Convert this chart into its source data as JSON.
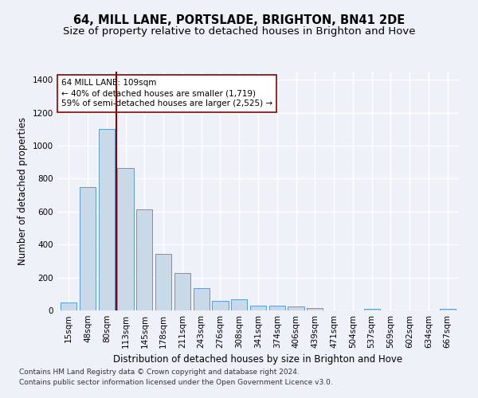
{
  "title1": "64, MILL LANE, PORTSLADE, BRIGHTON, BN41 2DE",
  "title2": "Size of property relative to detached houses in Brighton and Hove",
  "xlabel": "Distribution of detached houses by size in Brighton and Hove",
  "ylabel": "Number of detached properties",
  "footnote1": "Contains HM Land Registry data © Crown copyright and database right 2024.",
  "footnote2": "Contains public sector information licensed under the Open Government Licence v3.0.",
  "annotation_line1": "64 MILL LANE: 109sqm",
  "annotation_line2": "← 40% of detached houses are smaller (1,719)",
  "annotation_line3": "59% of semi-detached houses are larger (2,525) →",
  "bar_color": "#c9d9e8",
  "bar_edge_color": "#5b9bd5",
  "vline_color": "#8b0000",
  "vline_x": 2.5,
  "categories": [
    "15sqm",
    "48sqm",
    "80sqm",
    "113sqm",
    "145sqm",
    "178sqm",
    "211sqm",
    "243sqm",
    "276sqm",
    "308sqm",
    "341sqm",
    "374sqm",
    "406sqm",
    "439sqm",
    "471sqm",
    "504sqm",
    "537sqm",
    "569sqm",
    "602sqm",
    "634sqm",
    "667sqm"
  ],
  "values": [
    50,
    750,
    1100,
    865,
    615,
    345,
    225,
    135,
    60,
    70,
    30,
    30,
    22,
    15,
    0,
    0,
    12,
    0,
    0,
    0,
    12
  ],
  "ylim": [
    0,
    1450
  ],
  "yticks": [
    0,
    200,
    400,
    600,
    800,
    1000,
    1200,
    1400
  ],
  "background_color": "#eef2f8",
  "grid_color": "#ffffff",
  "title1_fontsize": 10.5,
  "title2_fontsize": 9.5,
  "xlabel_fontsize": 8.5,
  "ylabel_fontsize": 8.5,
  "footnote_fontsize": 6.5,
  "tick_fontsize": 7.5,
  "annot_fontsize": 7.5
}
